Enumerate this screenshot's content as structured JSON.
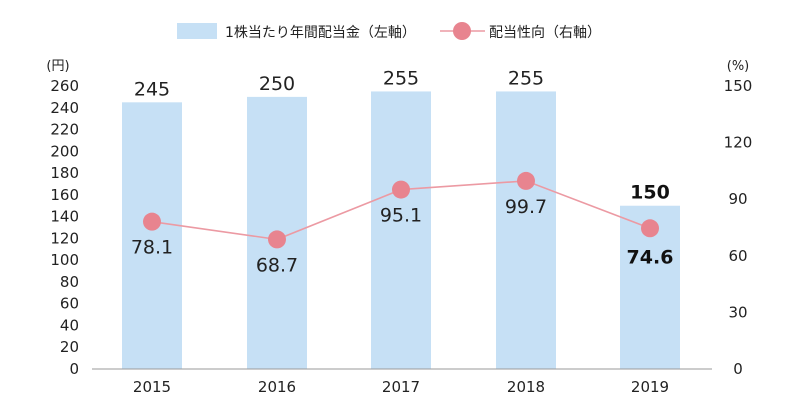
{
  "chart_data": {
    "type": "bar+line",
    "categories": [
      "2015",
      "2016",
      "2017",
      "2018",
      "2019"
    ],
    "series": [
      {
        "name": "1株当たり年間配当金（左軸）",
        "type": "bar",
        "axis": "left",
        "values": [
          245,
          250,
          255,
          255,
          150
        ],
        "value_labels": [
          "245",
          "250",
          "255",
          "255",
          "150"
        ],
        "color": "#c6e0f5"
      },
      {
        "name": "配当性向（右軸）",
        "type": "line",
        "axis": "right",
        "values": [
          78.1,
          68.7,
          95.1,
          99.7,
          74.6
        ],
        "value_labels": [
          "78.1",
          "68.7",
          "95.1",
          "99.7",
          "74.6"
        ],
        "color": "#e8848f",
        "line_color": "#ec9aa3"
      }
    ],
    "left_axis": {
      "unit": "(円)",
      "ylim": [
        0,
        260
      ],
      "ticks": [
        "0",
        "20",
        "40",
        "60",
        "80",
        "100",
        "120",
        "140",
        "160",
        "180",
        "200",
        "220",
        "240",
        "260"
      ]
    },
    "right_axis": {
      "unit": "(%)",
      "ylim": [
        0,
        150
      ],
      "ticks": [
        "0",
        "30",
        "60",
        "90",
        "120",
        "150"
      ]
    },
    "highlight_index": 4,
    "legend_position": "top-center",
    "grid": false
  }
}
